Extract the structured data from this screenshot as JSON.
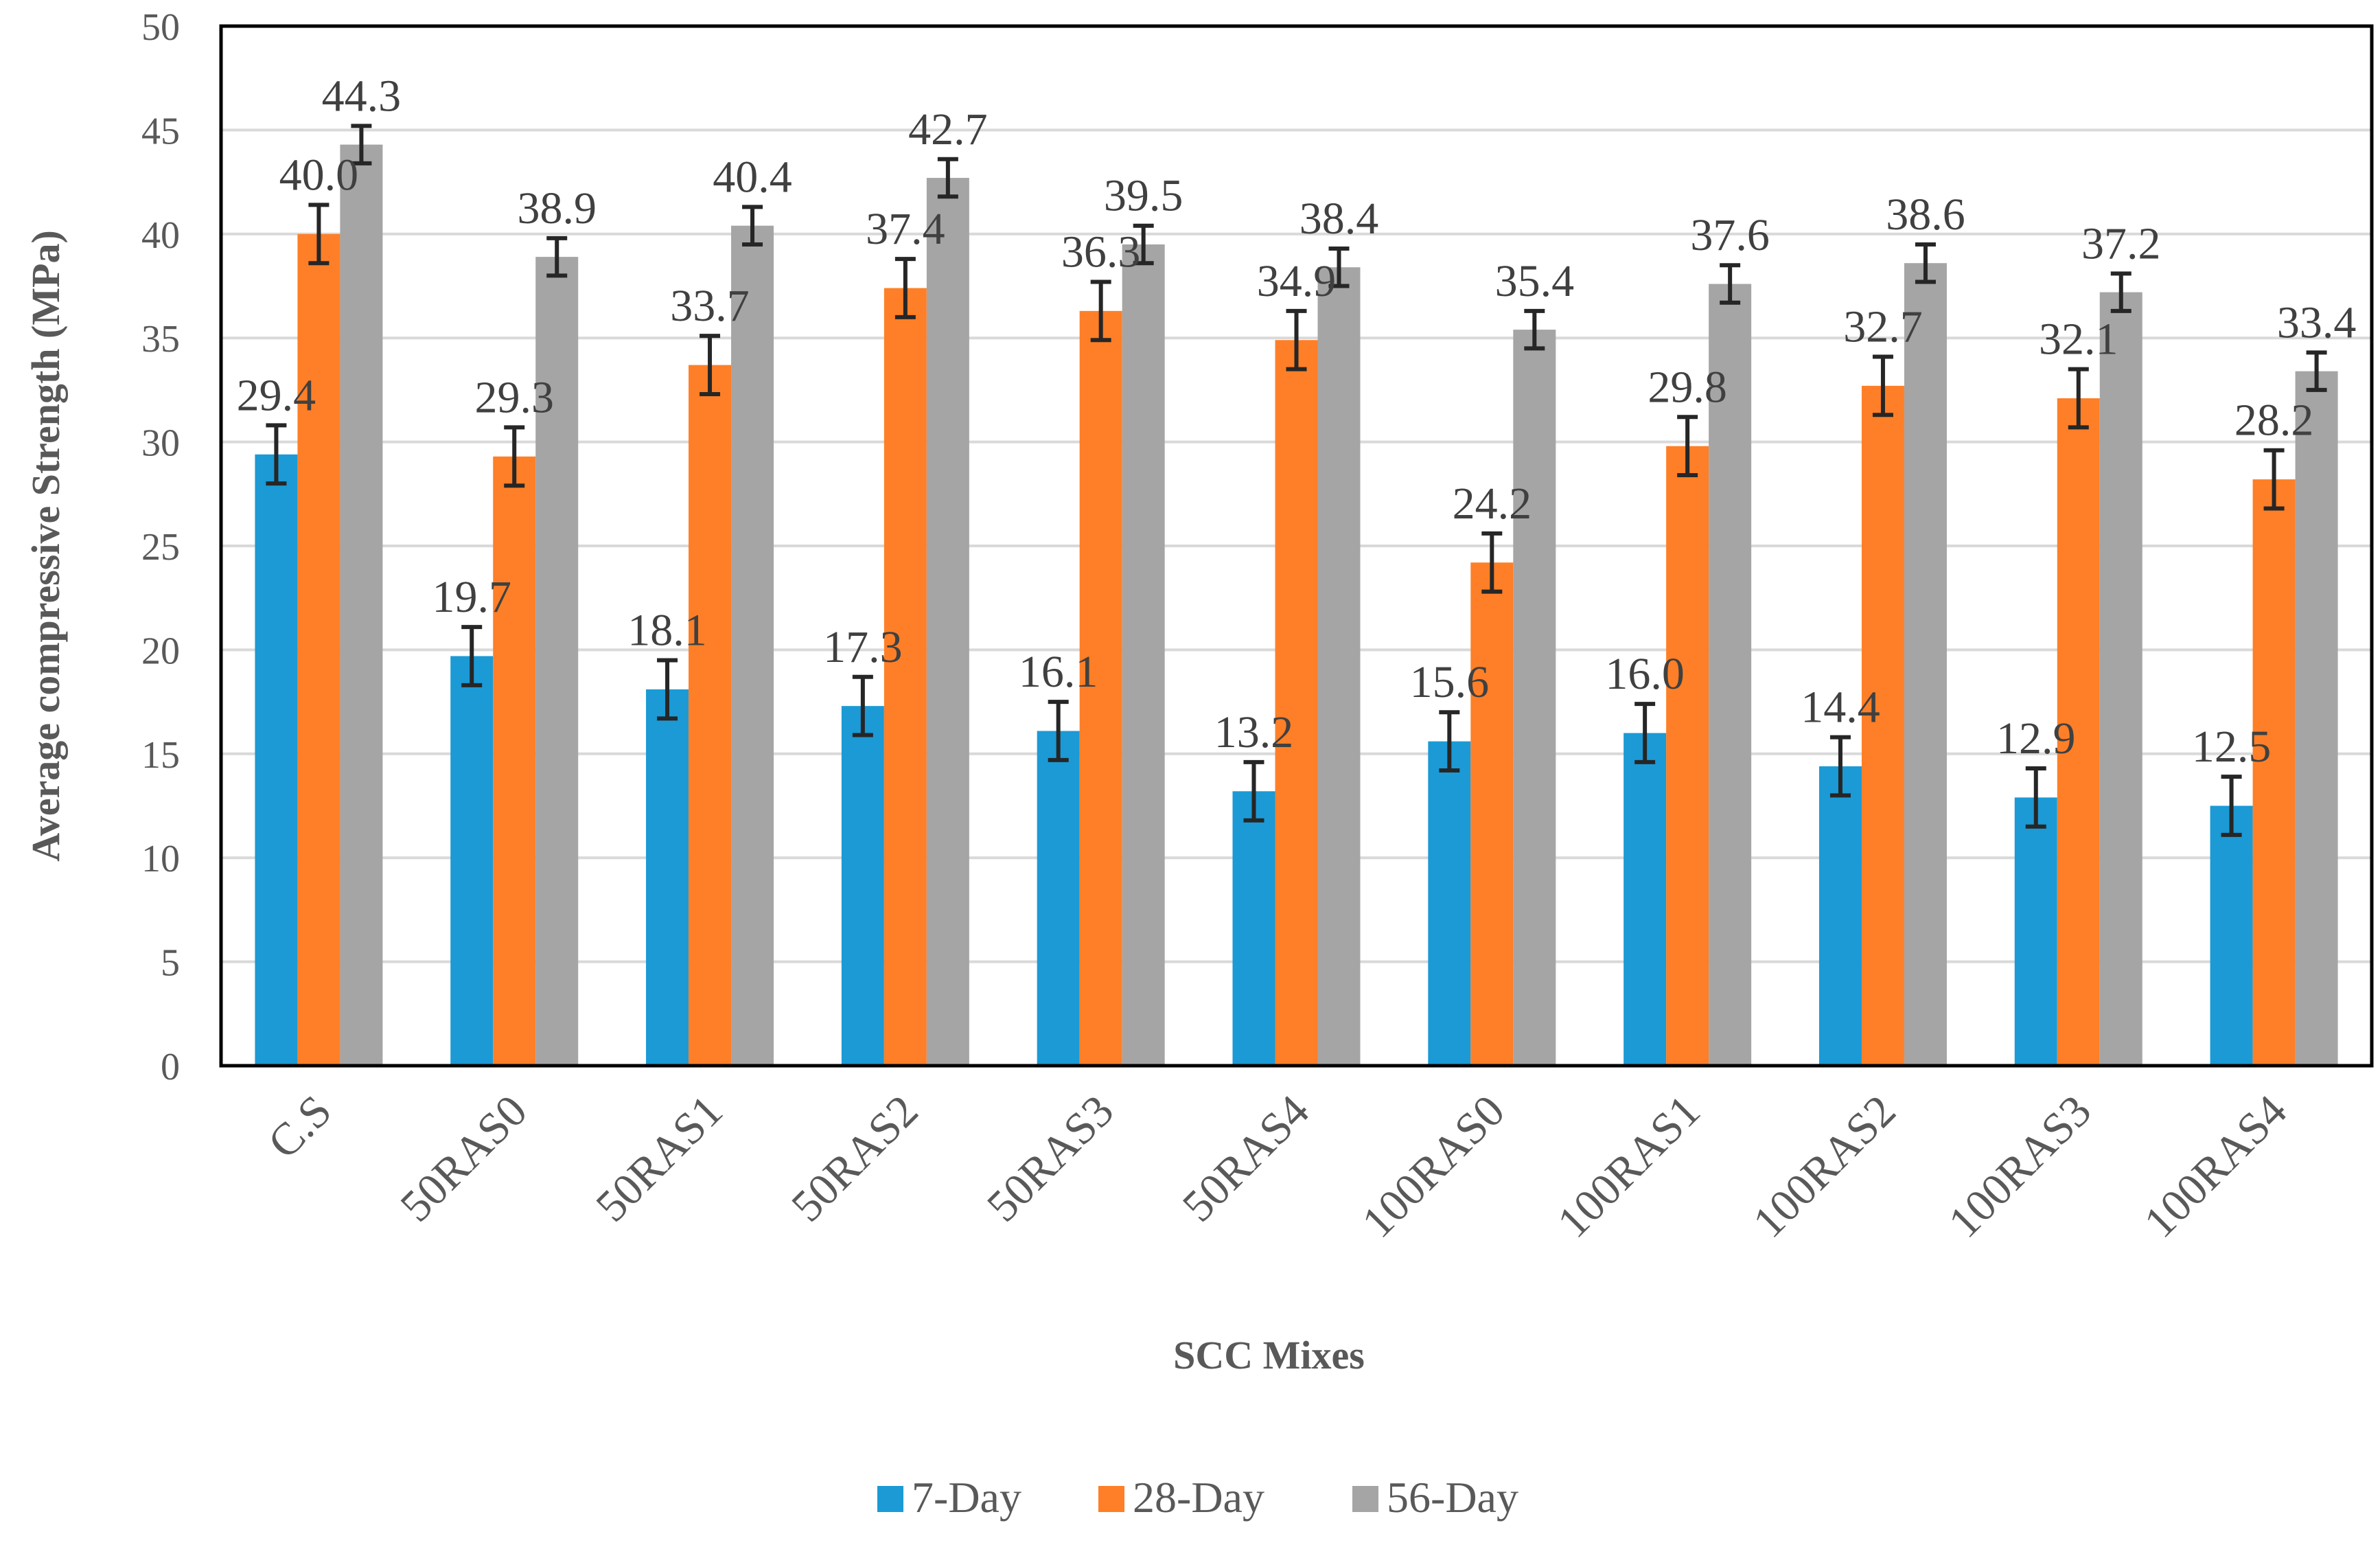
{
  "chart_data": {
    "type": "bar",
    "title": "",
    "xlabel": "SCC Mixes",
    "ylabel": "Average compressive Strength (MPa)",
    "ylim": [
      0,
      50
    ],
    "ytick_step": 5,
    "grid": true,
    "legend_position": "bottom",
    "categories": [
      "C.S",
      "50RAS0",
      "50RAS1",
      "50RAS2",
      "50RAS3",
      "50RAS4",
      "100RAS0",
      "100RAS1",
      "100RAS2",
      "100RAS3",
      "100RAS4"
    ],
    "series": [
      {
        "name": "7-Day",
        "color": "#1b9ad6",
        "values": [
          29.4,
          19.7,
          18.1,
          17.3,
          16.1,
          13.2,
          15.6,
          16.0,
          14.4,
          12.9,
          12.5
        ],
        "labels": [
          "29.4",
          "19.7",
          "18.1",
          "17.3",
          "16.1",
          "13.2",
          "15.6",
          "16.0",
          "14.4",
          "12.9",
          "12.5"
        ],
        "error": 1.4
      },
      {
        "name": "28-Day",
        "color": "#fe7f27",
        "values": [
          40.0,
          29.3,
          33.7,
          37.4,
          36.3,
          34.9,
          24.2,
          29.8,
          32.7,
          32.1,
          28.2
        ],
        "labels": [
          "40.0",
          "29.3",
          "33.7",
          "37.4",
          "36.3",
          "34.9",
          "24.2",
          "29.8",
          "32.7",
          "32.1",
          "28.2"
        ],
        "error": 1.4
      },
      {
        "name": "56-Day",
        "color": "#a5a5a5",
        "values": [
          44.3,
          38.9,
          40.4,
          42.7,
          39.5,
          38.4,
          35.4,
          37.6,
          38.6,
          37.2,
          33.4
        ],
        "labels": [
          "44.3",
          "38.9",
          "40.4",
          "42.7",
          "39.5",
          "38.4",
          "35.4",
          "37.6",
          "38.6",
          "37.2",
          "33.4"
        ],
        "error": 0.9
      }
    ]
  }
}
